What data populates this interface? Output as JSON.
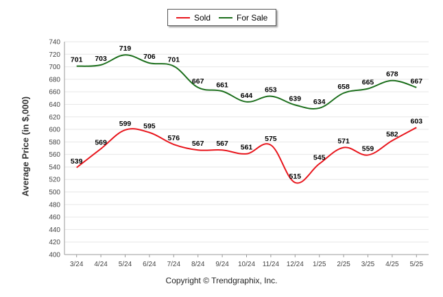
{
  "chart_data": {
    "type": "line",
    "categories": [
      "3/24",
      "4/24",
      "5/24",
      "6/24",
      "7/24",
      "8/24",
      "9/24",
      "10/24",
      "11/24",
      "12/24",
      "1/25",
      "2/25",
      "3/25",
      "4/25",
      "5/25"
    ],
    "series": [
      {
        "name": "Sold",
        "color": "#e8151c",
        "values": [
          539,
          569,
          599,
          595,
          576,
          567,
          567,
          561,
          575,
          515,
          545,
          571,
          559,
          582,
          603
        ]
      },
      {
        "name": "For Sale",
        "color": "#1b6e1b",
        "values": [
          701,
          703,
          719,
          706,
          701,
          667,
          661,
          644,
          653,
          639,
          634,
          658,
          665,
          678,
          667
        ]
      }
    ],
    "ylabel": "Average Price (in $,000)",
    "ylim": [
      400,
      740
    ],
    "yticks": [
      400,
      420,
      440,
      460,
      480,
      500,
      520,
      540,
      560,
      580,
      600,
      620,
      640,
      660,
      680,
      700,
      720,
      740
    ],
    "grid": true,
    "legend": "top-center"
  },
  "legend": {
    "sold_label": "Sold",
    "forsale_label": "For Sale"
  },
  "footer": {
    "copyright": "Copyright © Trendgraphix, Inc."
  }
}
